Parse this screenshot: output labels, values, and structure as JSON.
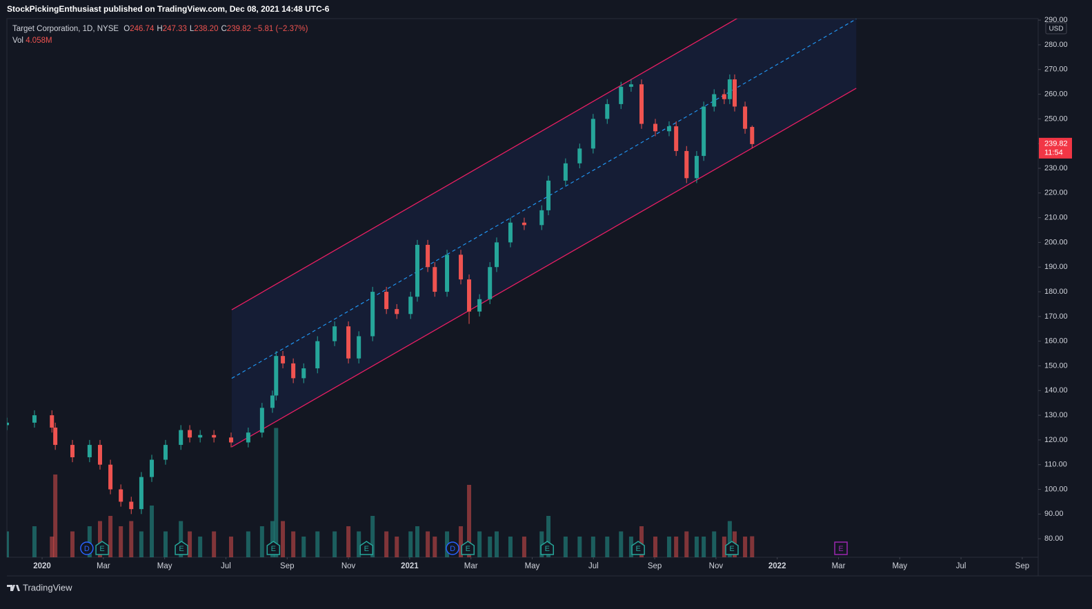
{
  "header": {
    "publisher": "StockPickingEnthusiast published on TradingView.com, Dec 08, 2021 14:48 UTC-6"
  },
  "legend": {
    "symbol": "Target Corporation, 1D, NYSE",
    "fields": [
      {
        "key": "O",
        "value": "246.74"
      },
      {
        "key": "H",
        "value": "247.33"
      },
      {
        "key": "L",
        "value": "238.20"
      },
      {
        "key": "C",
        "value": "239.82"
      }
    ],
    "change": "−5.81 (−2.37%)",
    "volume_key": "Vol",
    "volume_value": "4.058M"
  },
  "footer": {
    "brand": "TradingView"
  },
  "chart_data": {
    "type": "candlestick",
    "currency": "USD",
    "up_color": "#26a69a",
    "down_color": "#ef5350",
    "x": [
      -1.15,
      -0.25,
      0.32,
      0.43,
      0.99,
      1.55,
      1.89,
      2.23,
      2.57,
      2.91,
      3.24,
      3.58,
      4.03,
      4.53,
      4.82,
      5.16,
      5.61,
      6.17,
      6.73,
      7.18,
      7.52,
      7.64,
      7.86,
      8.2,
      8.54,
      8.99,
      9.55,
      10.0,
      10.34,
      10.79,
      11.24,
      11.58,
      12.03,
      12.25,
      12.59,
      12.82,
      13.22,
      13.67,
      13.94,
      14.28,
      14.62,
      14.84,
      15.29,
      15.74,
      16.31,
      16.53,
      17.09,
      17.55,
      17.99,
      18.45,
      18.9,
      19.23,
      19.57,
      20.02,
      20.47,
      20.7,
      21.04,
      21.37,
      21.6,
      21.94,
      22.27,
      22.45,
      22.61,
      22.95,
      23.18
    ],
    "open": [
      126,
      127,
      130,
      125,
      118,
      113,
      118,
      110,
      100,
      95,
      92,
      105,
      112,
      118,
      124,
      121,
      122,
      121,
      119,
      123,
      133,
      138,
      154,
      151,
      145,
      149,
      160,
      166,
      153,
      162,
      180,
      173,
      171,
      178,
      199,
      190,
      180,
      195,
      185,
      172,
      177,
      190,
      200,
      208,
      207,
      213,
      225,
      232,
      238,
      250,
      256,
      263,
      264,
      248,
      245,
      247,
      237,
      226,
      235,
      255,
      260,
      258,
      266,
      255,
      246.74
    ],
    "high": [
      129,
      132,
      132,
      127,
      120,
      120,
      120,
      112,
      102,
      97,
      107,
      114,
      120,
      126,
      126,
      124,
      124,
      123,
      125,
      135,
      140,
      156,
      156,
      153,
      151,
      162,
      168,
      168,
      164,
      182,
      182,
      175,
      180,
      201,
      201,
      192,
      197,
      197,
      187,
      179,
      192,
      202,
      210,
      210,
      215,
      227,
      234,
      240,
      252,
      258,
      265,
      266,
      266,
      250,
      249,
      249,
      239,
      237,
      257,
      262,
      262,
      268,
      268,
      257,
      247.33
    ],
    "low": [
      124,
      125,
      123,
      116,
      111,
      111,
      108,
      98,
      93,
      90,
      90,
      103,
      110,
      116,
      119,
      119,
      119,
      117,
      117,
      121,
      131,
      136,
      149,
      143,
      143,
      147,
      158,
      151,
      151,
      160,
      171,
      169,
      169,
      176,
      188,
      178,
      178,
      183,
      167,
      170,
      175,
      188,
      198,
      205,
      205,
      211,
      223,
      230,
      236,
      248,
      254,
      261,
      246,
      243,
      243,
      235,
      224,
      224,
      233,
      253,
      256,
      256,
      253,
      244,
      238.2
    ],
    "close": [
      127,
      130,
      125,
      118,
      113,
      118,
      110,
      100,
      95,
      92,
      105,
      112,
      118,
      124,
      121,
      122,
      121,
      119,
      123,
      133,
      138,
      154,
      151,
      145,
      149,
      160,
      166,
      153,
      162,
      180,
      173,
      171,
      178,
      199,
      190,
      180,
      195,
      185,
      172,
      177,
      190,
      200,
      208,
      207,
      213,
      225,
      232,
      238,
      250,
      256,
      263,
      264,
      248,
      245,
      247,
      237,
      226,
      235,
      255,
      260,
      258,
      266,
      255,
      246,
      239.82
    ],
    "volume": [
      5,
      6,
      4,
      16,
      5,
      6,
      7,
      8,
      6,
      7,
      5,
      10,
      5,
      7,
      5,
      4,
      5,
      4,
      5,
      6,
      7,
      25,
      7,
      5,
      4,
      5,
      5,
      6,
      5,
      8,
      5,
      4,
      5,
      6,
      5,
      4,
      5,
      6,
      14,
      5,
      4,
      5,
      4,
      4,
      5,
      8,
      4,
      4,
      4,
      4,
      5,
      4,
      6,
      4,
      4,
      4,
      5,
      4,
      4,
      5,
      4,
      7,
      5,
      4,
      4.058
    ],
    "xlim": [
      -1.15,
      32.52
    ],
    "ylim": [
      72.5,
      290.6
    ],
    "xticks": [
      {
        "value": 0,
        "label": "2020"
      },
      {
        "value": 2,
        "label": "Mar"
      },
      {
        "value": 4,
        "label": "May"
      },
      {
        "value": 6,
        "label": "Jul"
      },
      {
        "value": 8,
        "label": "Sep"
      },
      {
        "value": 10,
        "label": "Nov"
      },
      {
        "value": 12,
        "label": "2021"
      },
      {
        "value": 14,
        "label": "Mar"
      },
      {
        "value": 16,
        "label": "May"
      },
      {
        "value": 18,
        "label": "Jul"
      },
      {
        "value": 20,
        "label": "Sep"
      },
      {
        "value": 22,
        "label": "Nov"
      },
      {
        "value": 24,
        "label": "2022"
      },
      {
        "value": 26,
        "label": "Mar"
      },
      {
        "value": 28,
        "label": "May"
      },
      {
        "value": 30,
        "label": "Jul"
      },
      {
        "value": 32,
        "label": "Sep"
      }
    ],
    "yticks": [
      {
        "value": 80,
        "label": "80.00"
      },
      {
        "value": 90,
        "label": "90.00"
      },
      {
        "value": 100,
        "label": "100.00"
      },
      {
        "value": 110,
        "label": "110.00"
      },
      {
        "value": 120,
        "label": "120.00"
      },
      {
        "value": 130,
        "label": "130.00"
      },
      {
        "value": 140,
        "label": "140.00"
      },
      {
        "value": 150,
        "label": "150.00"
      },
      {
        "value": 160,
        "label": "160.00"
      },
      {
        "value": 170,
        "label": "170.00"
      },
      {
        "value": 180,
        "label": "180.00"
      },
      {
        "value": 190,
        "label": "190.00"
      },
      {
        "value": 200,
        "label": "200.00"
      },
      {
        "value": 210,
        "label": "210.00"
      },
      {
        "value": 220,
        "label": "220.00"
      },
      {
        "value": 230,
        "label": "230.00"
      },
      {
        "value": 240,
        "label": "240.00"
      },
      {
        "value": 250,
        "label": "250.00"
      },
      {
        "value": 260,
        "label": "260.00"
      },
      {
        "value": 270,
        "label": "270.00"
      },
      {
        "value": 280,
        "label": "280.00"
      },
      {
        "value": 290,
        "label": "290.00"
      }
    ],
    "grid": false,
    "channel": {
      "x": [
        6.19,
        26.58
      ],
      "upper": [
        172.7,
        318.5
      ],
      "lower": [
        117.2,
        262.4
      ],
      "line_color": "#e91e63",
      "mid_color": "#2196f3",
      "fill": "rgba(41,98,255,0.09)"
    },
    "price_label": {
      "price": "239.82",
      "countdown": "11:54",
      "color": "#f23645"
    },
    "events": [
      {
        "x": 1.46,
        "label": "D",
        "shape": "circle",
        "color": "#2962ff"
      },
      {
        "x": 1.96,
        "label": "E",
        "shape": "pentagon",
        "color": "#26a69a"
      },
      {
        "x": 4.55,
        "label": "E",
        "shape": "pentagon",
        "color": "#26a69a"
      },
      {
        "x": 7.55,
        "label": "E",
        "shape": "pentagon",
        "color": "#26a69a"
      },
      {
        "x": 10.59,
        "label": "E",
        "shape": "pentagon",
        "color": "#26a69a"
      },
      {
        "x": 13.4,
        "label": "D",
        "shape": "circle",
        "color": "#2962ff"
      },
      {
        "x": 13.9,
        "label": "E",
        "shape": "pentagon",
        "color": "#26a69a"
      },
      {
        "x": 16.49,
        "label": "E",
        "shape": "pentagon",
        "color": "#26a69a"
      },
      {
        "x": 19.46,
        "label": "E",
        "shape": "pentagon",
        "color": "#26a69a"
      },
      {
        "x": 22.52,
        "label": "E",
        "shape": "pentagon",
        "color": "#26a69a"
      },
      {
        "x": 26.08,
        "label": "E",
        "shape": "square",
        "color": "#9c27b0"
      }
    ]
  }
}
